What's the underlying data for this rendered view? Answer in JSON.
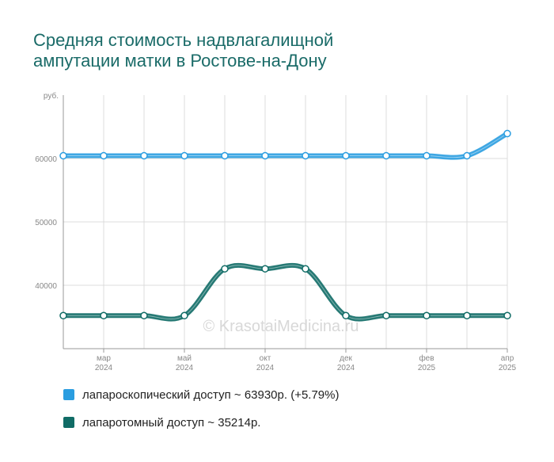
{
  "title_lines": [
    "Средняя стоимость надвлагалищной",
    "ампутации матки в Ростове-на-Дону"
  ],
  "watermark": "© KrasotaiMedicina.ru",
  "legend": [
    {
      "label": "лапароскопический доступ ~ 63930р. (+5.79%)",
      "color": "#2a9de0"
    },
    {
      "label": "лапаротомный доступ ~ 35214р.",
      "color": "#106c66"
    }
  ],
  "chart_data": {
    "type": "line",
    "ylabel": "руб.",
    "ylim": [
      30000,
      70000
    ],
    "yticks": [
      40000,
      50000,
      60000
    ],
    "x_range": [
      1,
      12
    ],
    "x_ticks": [
      {
        "x": 2,
        "line1": "мар",
        "line2": "2024"
      },
      {
        "x": 4,
        "line1": "май",
        "line2": "2024"
      },
      {
        "x": 6,
        "line1": "окт",
        "line2": "2024"
      },
      {
        "x": 8,
        "line1": "дек",
        "line2": "2024"
      },
      {
        "x": 10,
        "line1": "фев",
        "line2": "2025"
      },
      {
        "x": 12,
        "line1": "апр",
        "line2": "2025"
      }
    ],
    "series": [
      {
        "name": "лапароскопический доступ",
        "color": "#2a9de0",
        "values": [
          60430,
          60430,
          60430,
          60430,
          60430,
          60430,
          60430,
          60430,
          60430,
          60430,
          60430,
          63930
        ]
      },
      {
        "name": "лапаротомный доступ",
        "color": "#106c66",
        "values": [
          35214,
          35214,
          35214,
          35214,
          42600,
          42600,
          42600,
          35214,
          35214,
          35214,
          35214,
          35214
        ]
      }
    ]
  }
}
